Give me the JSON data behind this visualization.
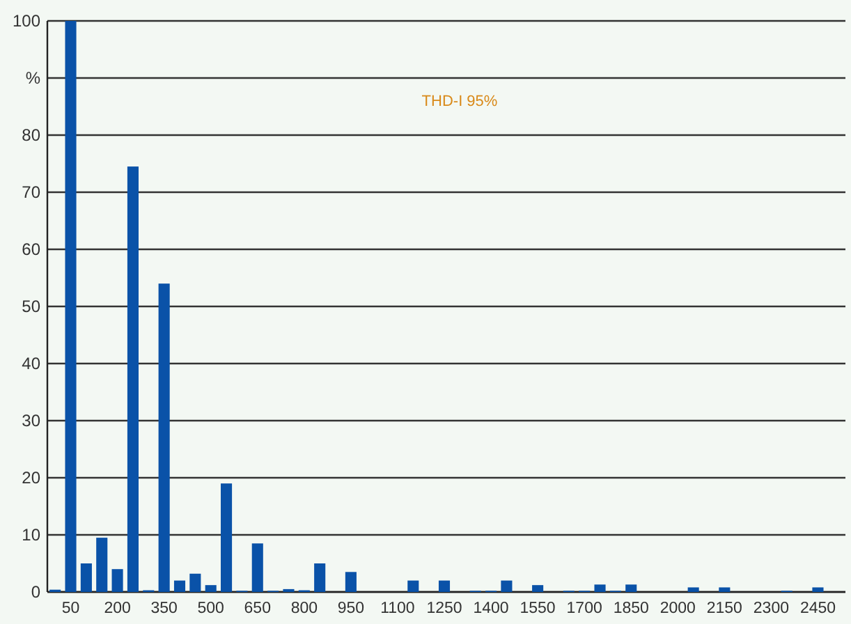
{
  "chart_data": {
    "type": "bar",
    "categories": [
      null,
      "50",
      null,
      null,
      "200",
      null,
      null,
      "350",
      null,
      null,
      "500",
      null,
      null,
      "650",
      null,
      null,
      "800",
      null,
      null,
      "950",
      null,
      null,
      "1100",
      null,
      null,
      "1250",
      null,
      null,
      "1400",
      null,
      null,
      "1550",
      null,
      null,
      "1700",
      null,
      null,
      "1850",
      null,
      null,
      "2000",
      null,
      null,
      "2150",
      null,
      null,
      "2300",
      null,
      null,
      "2450",
      null
    ],
    "values": [
      0.4,
      100,
      5,
      9.5,
      4,
      74.5,
      0.3,
      54,
      2,
      3.2,
      1.2,
      19,
      0.2,
      8.5,
      0.2,
      0.5,
      0.3,
      5,
      0,
      3.5,
      0,
      0,
      0,
      2,
      0,
      2,
      0,
      0.2,
      0.2,
      2,
      0,
      1.2,
      0,
      0.2,
      0.2,
      1.3,
      0.2,
      1.3,
      0,
      0,
      0,
      0.8,
      0,
      0.8,
      0,
      0,
      0,
      0.2,
      0,
      0.8,
      0
    ],
    "color": "#0a52a8",
    "ylim": [
      0,
      100
    ],
    "yticks": [
      0,
      10,
      20,
      30,
      40,
      50,
      60,
      70,
      80,
      {
        "value": 90,
        "label": "%"
      },
      100
    ],
    "grid": "y",
    "annotations": [
      "THD-I 95%"
    ]
  }
}
